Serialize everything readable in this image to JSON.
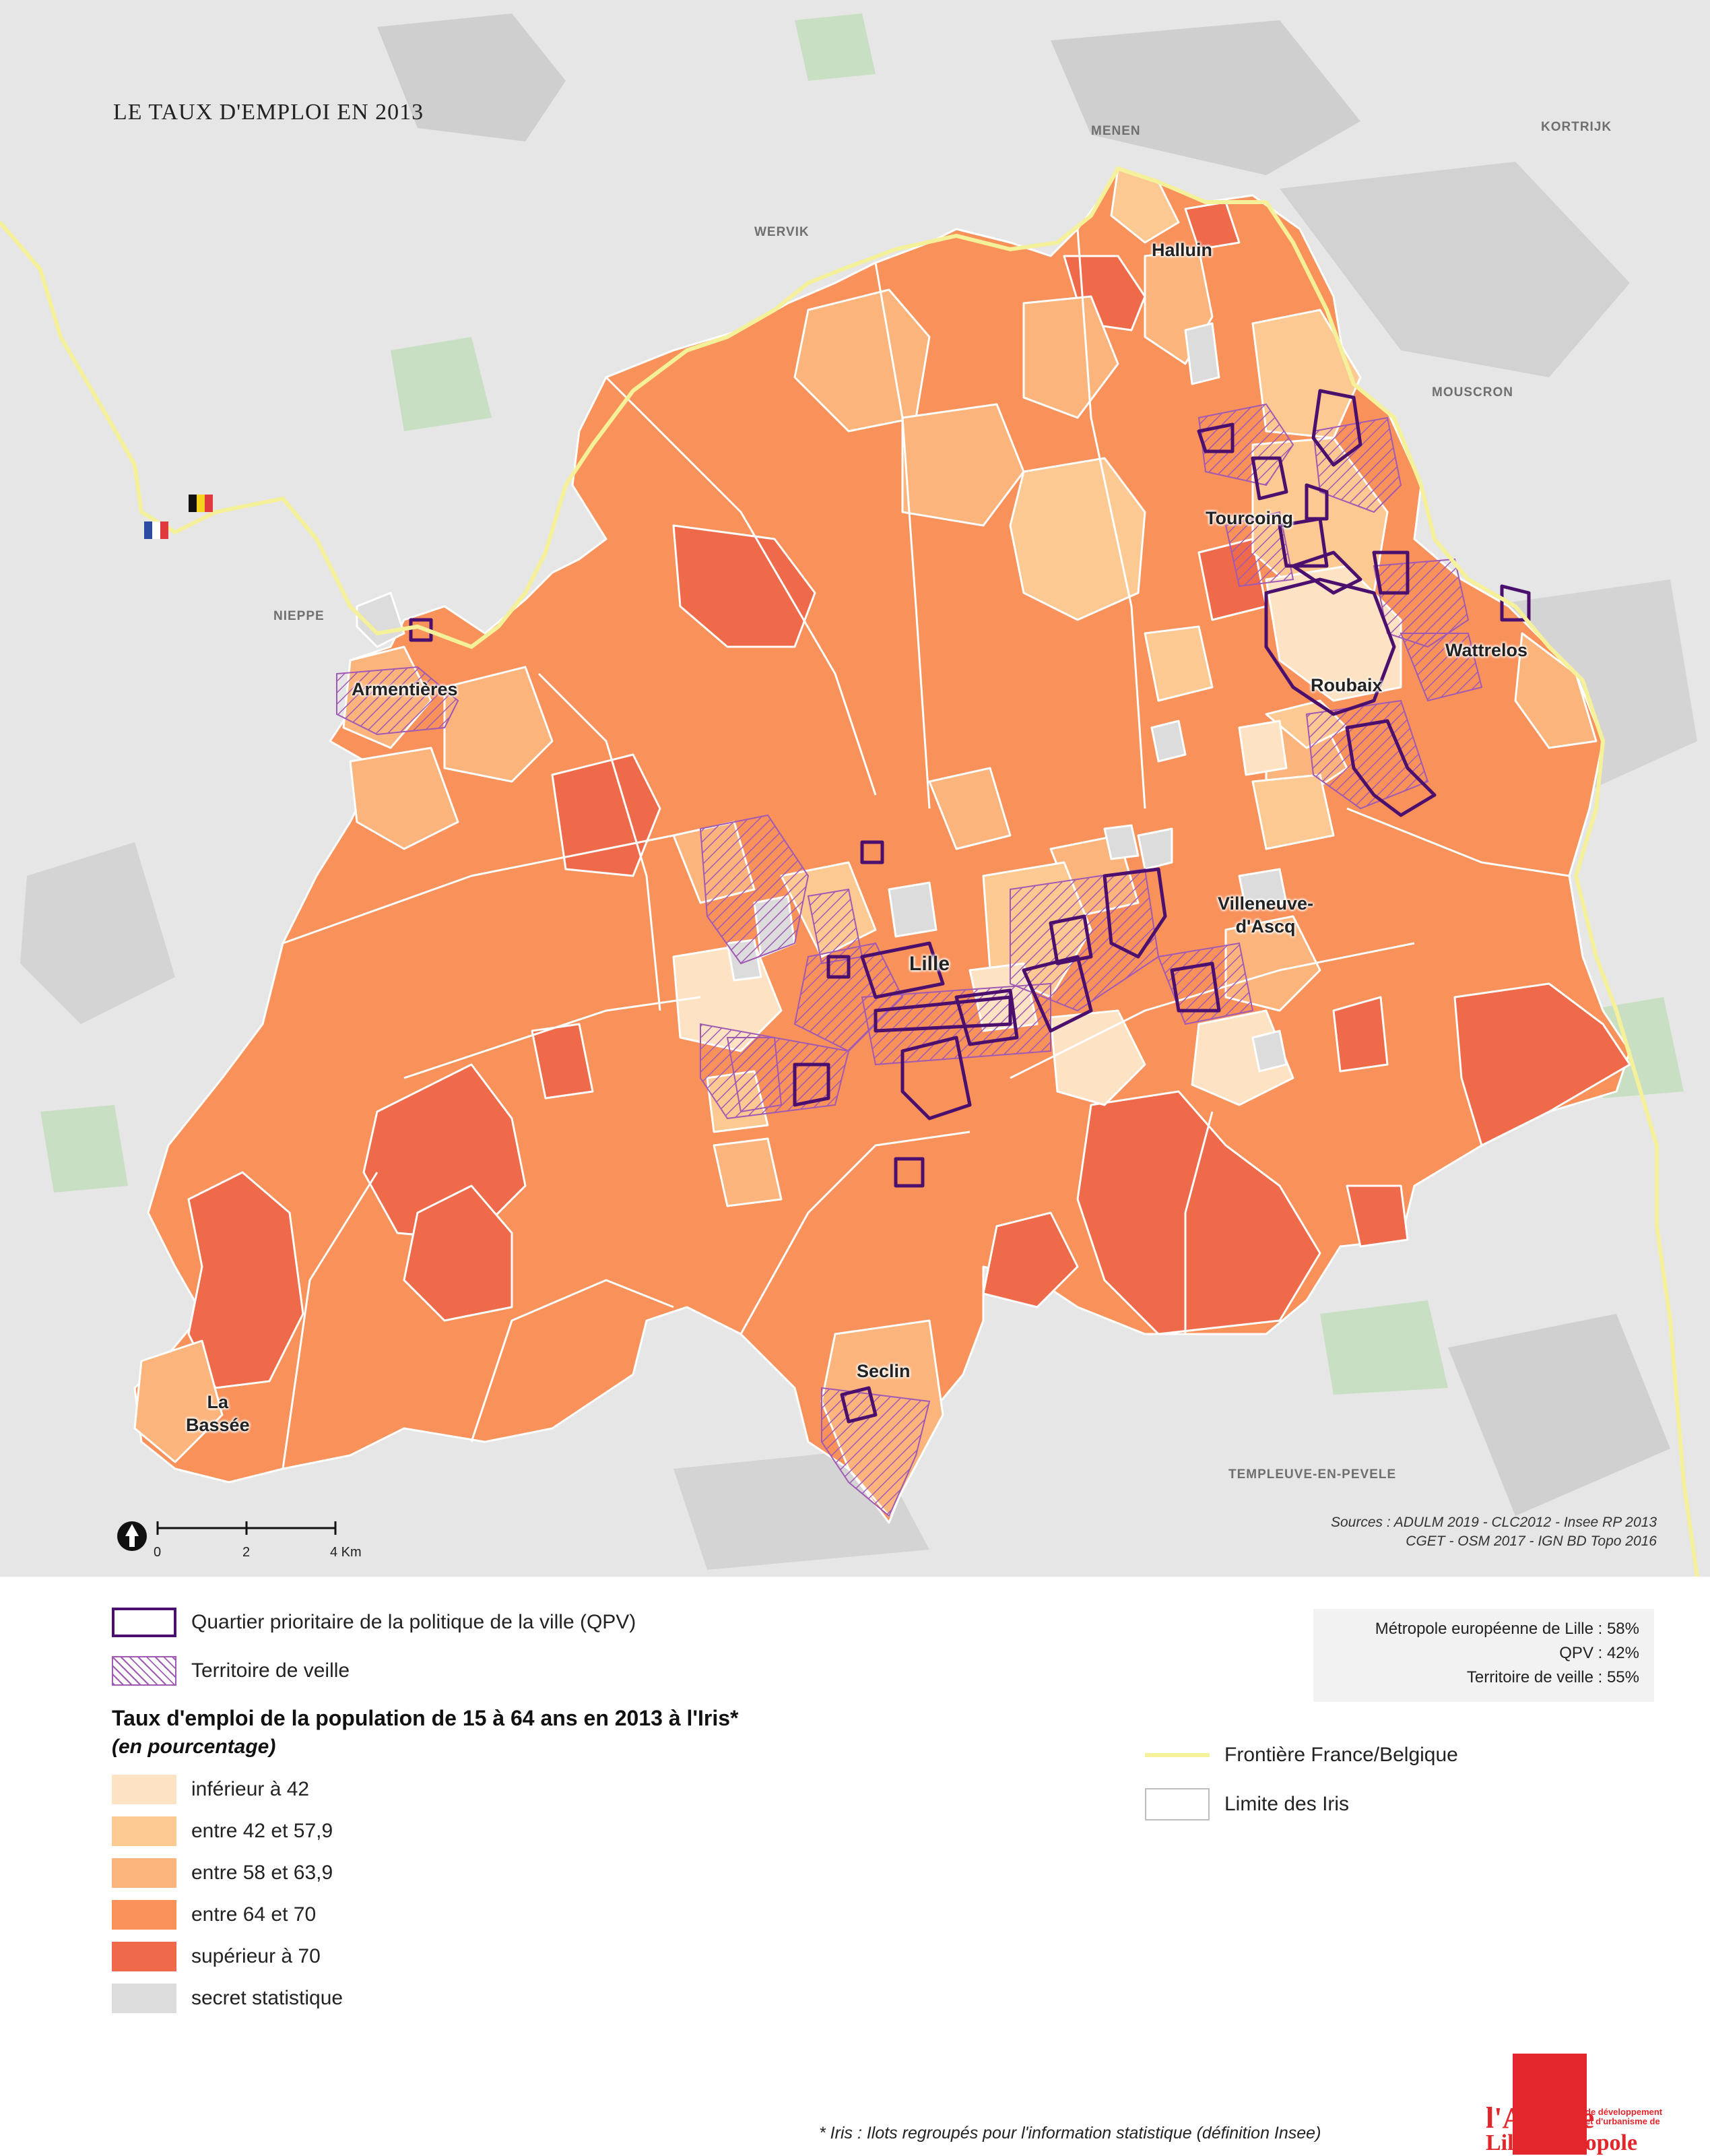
{
  "title": "LE TAUX D'EMPLOI EN 2013",
  "places": {
    "menen": "MENEN",
    "kortrijk": "KORTRIJK",
    "wervik": "WERVIK",
    "mouscron": "MOUSCRON",
    "nieppe": "NIEPPE",
    "templeuve": "TEMPLEUVE-EN-PEVELE"
  },
  "cities": {
    "halluin": "Halluin",
    "tourcoing": "Tourcoing",
    "wattrelos": "Wattrelos",
    "roubaix": "Roubaix",
    "armentieres": "Armentières",
    "villeneuve_1": "Villeneuve-",
    "villeneuve_2": "d'Ascq",
    "lille": "Lille",
    "seclin": "Seclin",
    "la_bassee_1": "La",
    "la_bassee_2": "Bassée"
  },
  "scale_bar": {
    "labels": [
      "0",
      "2",
      "4 Km"
    ]
  },
  "sources": {
    "line1": "Sources : ADULM 2019 - CLC2012 - Insee RP 2013",
    "line2": "CGET - OSM 2017 - IGN BD Topo 2016"
  },
  "legend": {
    "qpv": "Quartier prioritaire de la politique de la ville (QPV)",
    "veille": "Territoire de veille",
    "heading": "Taux d'emploi de la population de 15 à 64 ans en 2013 à l'Iris*",
    "subheading": "(en pourcentage)",
    "classes": [
      {
        "label": "inférieur à 42",
        "color": "#fde2c3"
      },
      {
        "label": "entre 42 et 57,9",
        "color": "#fcc992"
      },
      {
        "label": "entre 58 et 63,9",
        "color": "#fbb47c"
      },
      {
        "label": "entre 64 et 70",
        "color": "#f8915a"
      },
      {
        "label": "supérieur à 70",
        "color": "#ee6a4a"
      },
      {
        "label": "secret statistique",
        "color": "#dcdcdc"
      }
    ],
    "border": "Frontière France/Belgique",
    "iris_limit": "Limite des Iris"
  },
  "stats": {
    "mel": "Métropole européenne de Lille : 58%",
    "qpv": "QPV : 42%",
    "veille": "Territoire de veille : 55%"
  },
  "colors": {
    "qpv_outline": "#4b0f6e",
    "veille_hatch": "#a05ab4",
    "border_line": "#f5f09a"
  },
  "footnote": "* Iris : Ilots regroupés pour l'information statistique (définition Insee)",
  "logo": {
    "line1": "l'Agence",
    "line2": "Lille Métropole",
    "tagline_1": "de développement",
    "tagline_2": "et d'urbanisme de"
  }
}
